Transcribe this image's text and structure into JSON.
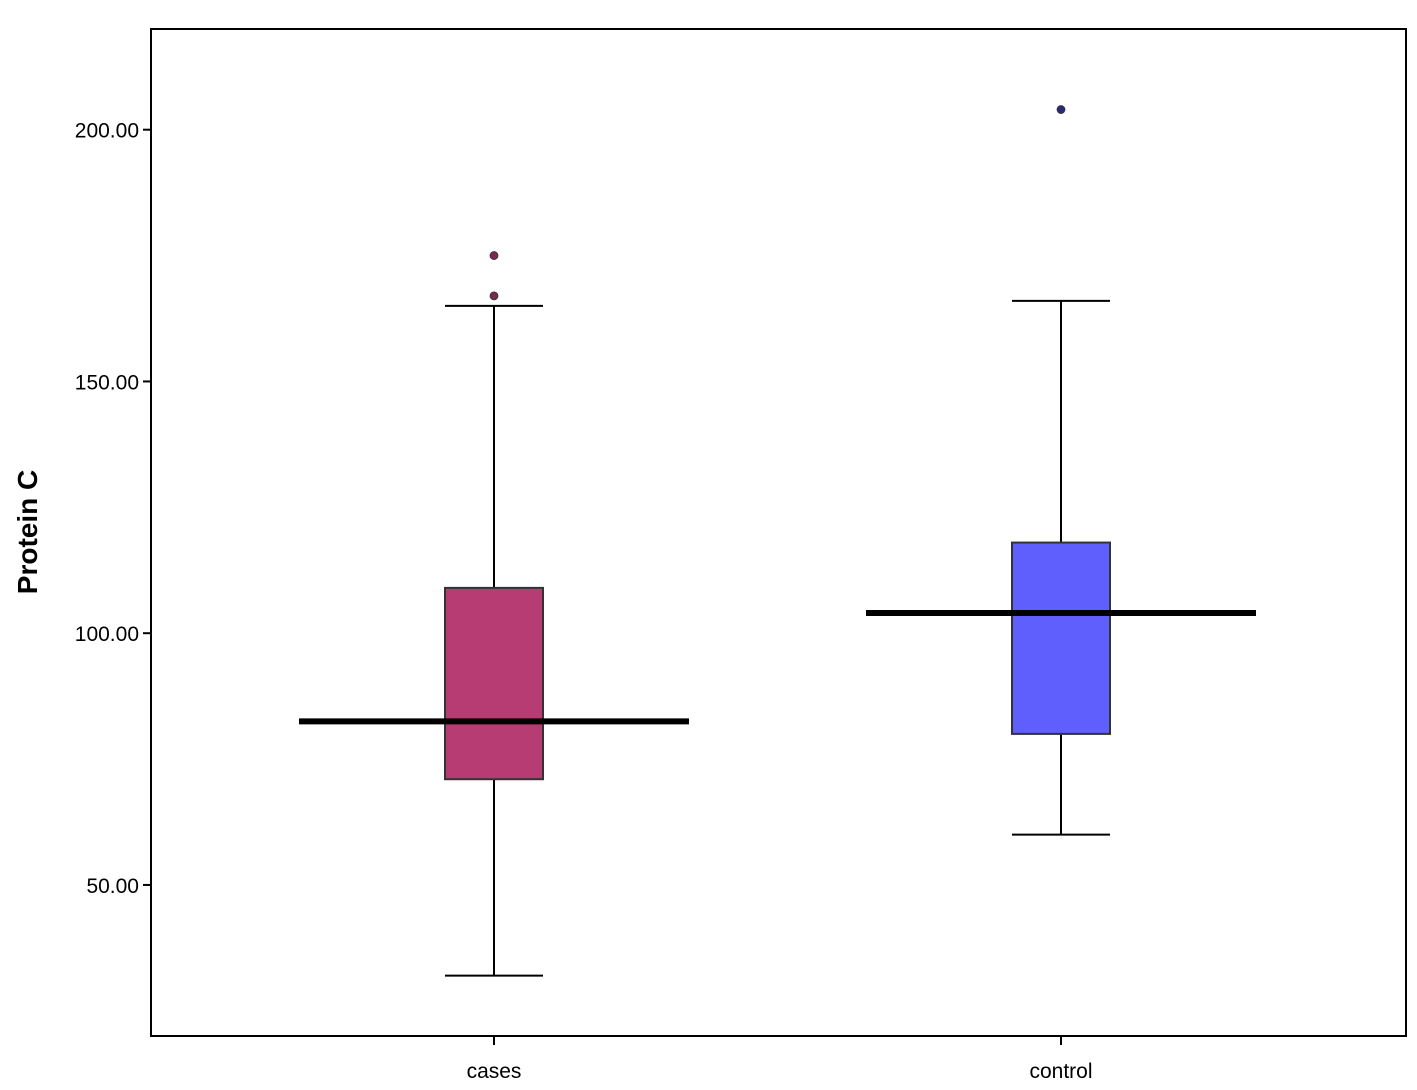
{
  "chart_data": {
    "type": "box",
    "title": "",
    "xlabel": "",
    "ylabel": "Protein C",
    "ylim": [
      20,
      220
    ],
    "yticks": [
      {
        "value": 50,
        "label": "50.00"
      },
      {
        "value": 100,
        "label": "100.00"
      },
      {
        "value": 150,
        "label": "150.00"
      },
      {
        "value": 200,
        "label": "200.00"
      }
    ],
    "categories": [
      "cases",
      "control"
    ],
    "grid": false,
    "legend": "none",
    "boxes": [
      {
        "category": "cases",
        "whisker_low": 32,
        "q1": 71,
        "median": 82.5,
        "q3": 109,
        "whisker_high": 165,
        "outliers": [
          167,
          175
        ],
        "color": "#b83c74",
        "outlier_color": "#7a2a4e"
      },
      {
        "category": "control",
        "whisker_low": 60,
        "q1": 80,
        "median": 104,
        "q3": 118,
        "whisker_high": 166,
        "outliers": [
          204
        ],
        "color": "#5f5ffe",
        "outlier_color": "#2a2a7a"
      }
    ]
  }
}
